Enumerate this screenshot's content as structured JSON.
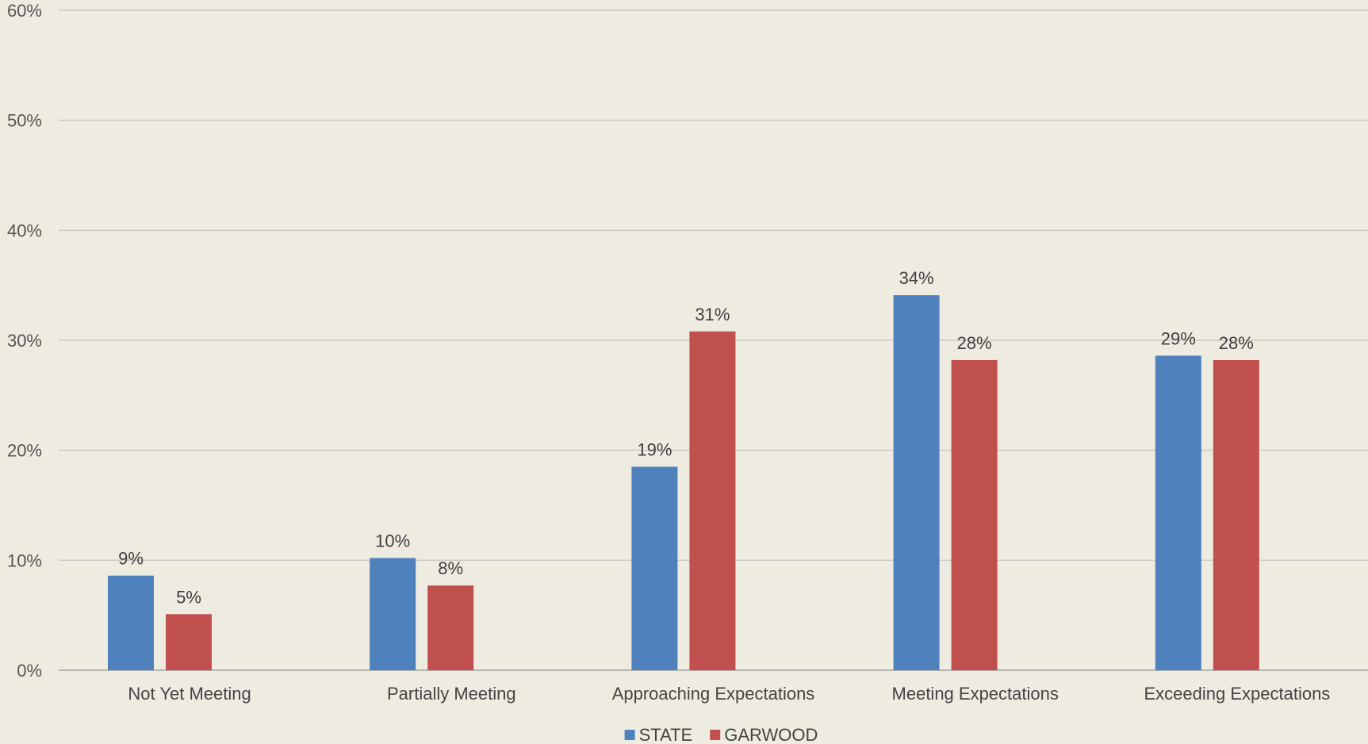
{
  "chart_data": {
    "type": "bar",
    "title": "",
    "xlabel": "",
    "ylabel": "",
    "categories": [
      "Not Yet Meeting",
      "Partially Meeting",
      "Approaching Expectations",
      "Meeting Expectations",
      "Exceeding Expectations"
    ],
    "series": [
      {
        "name": "STATE",
        "color": "#4F81BD",
        "values": [
          8.6,
          10.2,
          18.5,
          34.1,
          28.6
        ],
        "labels": [
          "9%",
          "10%",
          "19%",
          "34%",
          "29%"
        ]
      },
      {
        "name": "GARWOOD",
        "color": "#C0504D",
        "values": [
          5.1,
          7.7,
          30.8,
          28.2,
          28.2
        ],
        "labels": [
          "5%",
          "8%",
          "31%",
          "28%",
          "28%"
        ]
      }
    ],
    "ylim": [
      0,
      60
    ],
    "yticks": [
      0,
      10,
      20,
      30,
      40,
      50,
      60
    ],
    "ytick_labels": [
      "0%",
      "10%",
      "20%",
      "30%",
      "40%",
      "50%",
      "60%"
    ],
    "grid": true,
    "legend_position": "bottom-center"
  }
}
